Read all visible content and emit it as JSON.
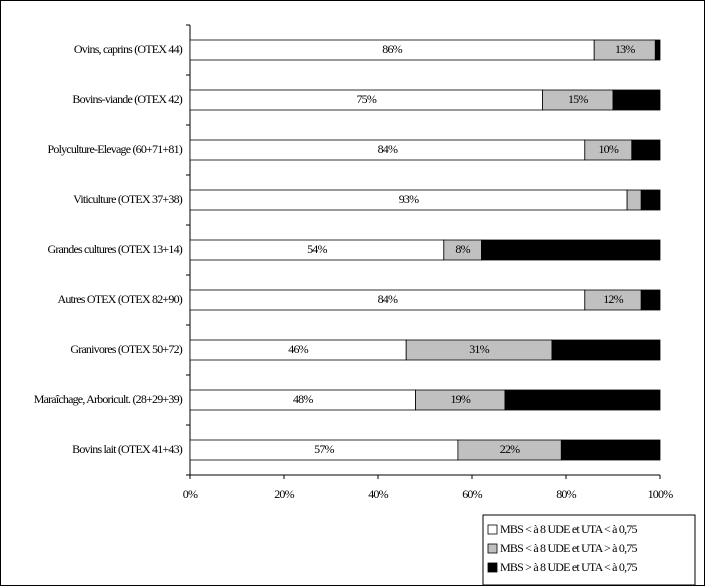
{
  "chart_data": {
    "type": "stacked-bar-horizontal",
    "categories": [
      "Ovins, caprins (OTEX 44)",
      "Bovins-viande (OTEX 42)",
      "Polyculture-Elevage (60+71+81)",
      "Viticulture (OTEX 37+38)",
      "Grandes cultures (OTEX 13+14)",
      "Autres OTEX (OTEX 82+90)",
      "Granivores (OTEX 50+72)",
      "Maraîchage, Arboricult. (28+29+39)",
      "Bovins lait (OTEX 41+43)"
    ],
    "series": [
      {
        "name": "MBS < à 8 UDE et UTA < à 0,75",
        "color": "#ffffff",
        "values": [
          86,
          75,
          84,
          93,
          54,
          84,
          46,
          48,
          57
        ],
        "value_labels": [
          "86%",
          "75%",
          "84%",
          "93%",
          "54%",
          "84%",
          "46%",
          "48%",
          "57%"
        ]
      },
      {
        "name": "MBS < à 8 UDE et UTA > à 0,75",
        "color": "#c0c0c0",
        "values": [
          13,
          15,
          10,
          3,
          8,
          12,
          31,
          19,
          22
        ],
        "value_labels": [
          "13%",
          "15%",
          "10%",
          null,
          "8%",
          "12%",
          "31%",
          "19%",
          "22%"
        ]
      },
      {
        "name": "MBS > à 8 UDE et UTA < à 0,75",
        "color": "#000000",
        "values": [
          1,
          10,
          6,
          4,
          38,
          4,
          23,
          33,
          21
        ]
      }
    ],
    "xlim": [
      0,
      100
    ],
    "xticks": [
      {
        "value": 0,
        "label": "0%"
      },
      {
        "value": 20,
        "label": "20%"
      },
      {
        "value": 40,
        "label": "40%"
      },
      {
        "value": 60,
        "label": "60%"
      },
      {
        "value": 80,
        "label": "80%"
      },
      {
        "value": 100,
        "label": "100%"
      }
    ],
    "legend": "bottom-right"
  }
}
